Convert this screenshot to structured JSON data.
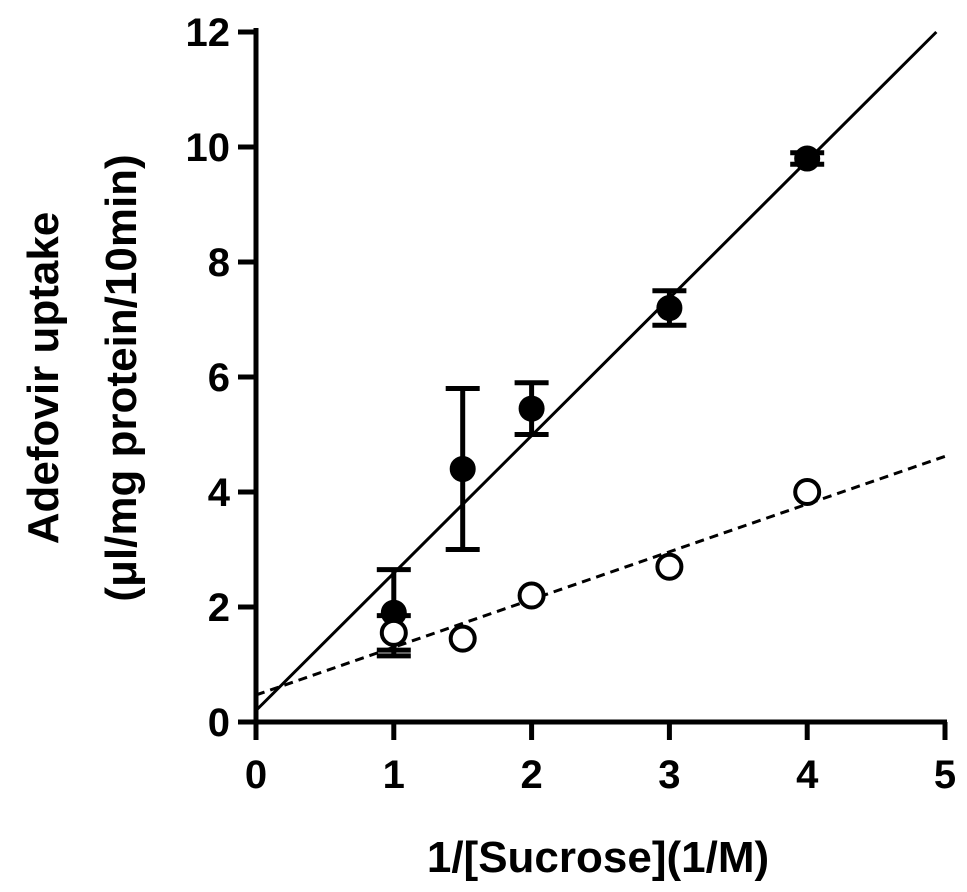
{
  "chart_data": {
    "type": "scatter",
    "title": "",
    "xlabel": "1/[Sucrose](1/M)",
    "ylabel_line1": "Adefovir uptake",
    "ylabel_line2": "(μl/mg protein/10min)",
    "xlim": [
      0,
      5
    ],
    "ylim": [
      0,
      12
    ],
    "x_ticks": [
      "0",
      "1",
      "2",
      "3",
      "4",
      "5"
    ],
    "y_ticks": [
      "0",
      "2",
      "4",
      "6",
      "8",
      "10",
      "12"
    ],
    "grid": false,
    "legend": "none",
    "series": [
      {
        "marker": "filled-circle",
        "x": [
          1,
          1.5,
          2,
          3,
          4
        ],
        "y": [
          1.9,
          4.4,
          5.45,
          7.2,
          9.8
        ],
        "err": [
          0.75,
          1.4,
          0.45,
          0.3,
          0.1
        ],
        "fit": {
          "slope": 2.39,
          "intercept": 0.2,
          "style": "solid"
        }
      },
      {
        "marker": "open-circle",
        "x": [
          1,
          1.5,
          2,
          3,
          4
        ],
        "y": [
          1.55,
          1.45,
          2.2,
          2.7,
          4.0
        ],
        "err": [
          0.3,
          0,
          0,
          0,
          0
        ],
        "fit": {
          "slope": 0.83,
          "intercept": 0.47,
          "style": "dashed"
        }
      }
    ]
  }
}
